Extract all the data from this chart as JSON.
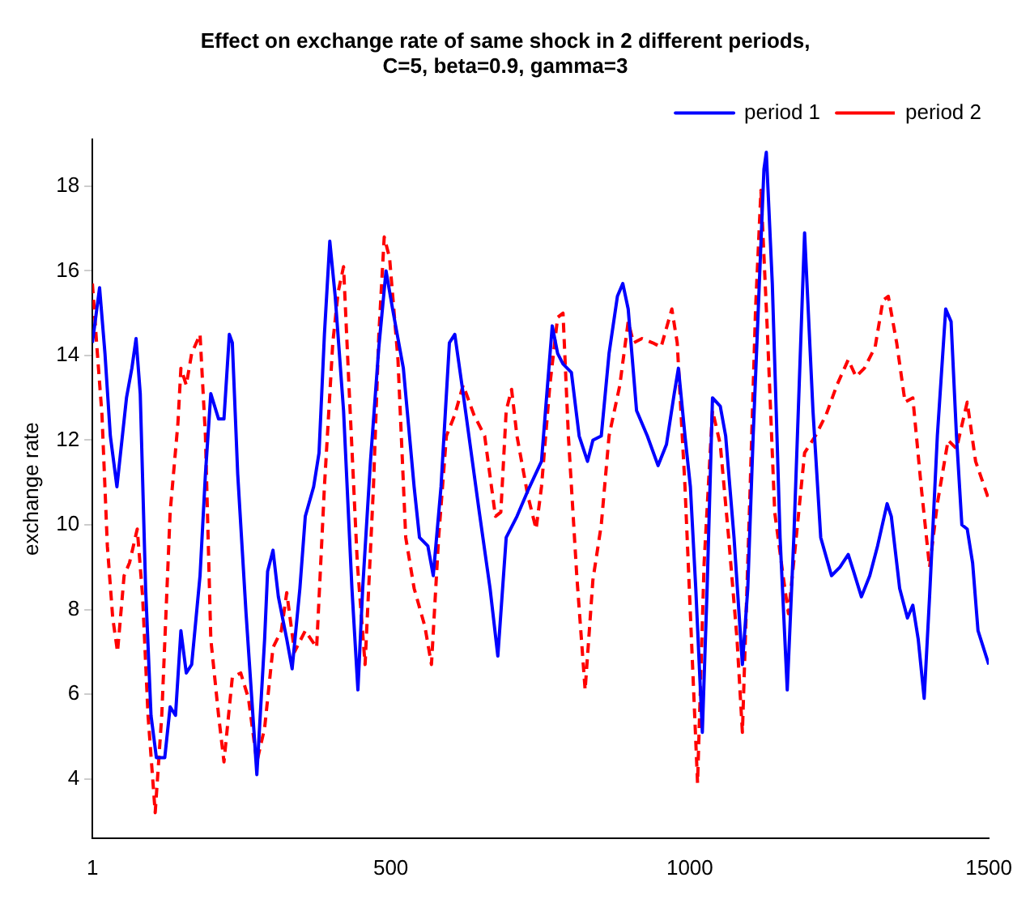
{
  "chart_data": {
    "type": "line",
    "title": "Effect on exchange rate of same shock in 2 different periods,\nC=5, beta=0.9, gamma=3",
    "ylabel": "exchange rate",
    "xlim": [
      1,
      1500
    ],
    "xticks": [
      1,
      500,
      1000,
      1500
    ],
    "ylim": [
      2.6,
      19.1
    ],
    "yticks": [
      4,
      6,
      8,
      10,
      12,
      14,
      16,
      18
    ],
    "grid": false,
    "legend": "top right",
    "marker": "none",
    "series": [
      {
        "name": "period 1",
        "color": "#0000ff",
        "line_style": "solid",
        "x": [
          1,
          13,
          22,
          31,
          42,
          58,
          67,
          74,
          81,
          90,
          99,
          108,
          122,
          131,
          140,
          149,
          158,
          167,
          181,
          190,
          199,
          212,
          221,
          230,
          235,
          244,
          258,
          276,
          289,
          294,
          303,
          312,
          326,
          335,
          348,
          357,
          371,
          380,
          389,
          398,
          407,
          421,
          435,
          445,
          453,
          466,
          480,
          492,
          503,
          521,
          539,
          548,
          562,
          571,
          584,
          598,
          607,
          621,
          648,
          666,
          679,
          693,
          711,
          729,
          752,
          770,
          779,
          788,
          802,
          815,
          829,
          838,
          852,
          865,
          879,
          888,
          897,
          911,
          929,
          947,
          961,
          974,
          981,
          992,
          1001,
          1010,
          1021,
          1029,
          1038,
          1051,
          1060,
          1074,
          1088,
          1097,
          1106,
          1118,
          1124,
          1128,
          1138,
          1151,
          1163,
          1174,
          1183,
          1192,
          1196,
          1206,
          1219,
          1237,
          1251,
          1265,
          1274,
          1287,
          1301,
          1314,
          1330,
          1337,
          1351,
          1364,
          1373,
          1382,
          1392,
          1401,
          1414,
          1428,
          1437,
          1446,
          1455,
          1464,
          1473,
          1482,
          1500
        ],
        "values": [
          14.3,
          15.6,
          14.05,
          12.1,
          10.9,
          13,
          13.7,
          14.4,
          13.1,
          8.5,
          5.5,
          4.5,
          4.5,
          5.7,
          5.5,
          7.5,
          6.5,
          6.7,
          8.8,
          11.2,
          13.1,
          12.5,
          12.5,
          14.5,
          14.3,
          11.2,
          7.9,
          4.1,
          7.3,
          8.9,
          9.4,
          8.3,
          7.3,
          6.6,
          8.5,
          10.2,
          10.9,
          11.7,
          14.5,
          16.7,
          15.4,
          12.7,
          8.5,
          6.1,
          8.5,
          11.5,
          14.2,
          16,
          15.1,
          13.7,
          10.9,
          9.7,
          9.5,
          8.8,
          10.9,
          14.3,
          14.5,
          13.1,
          10.3,
          8.5,
          6.9,
          9.7,
          10.2,
          10.8,
          11.5,
          14.7,
          14.05,
          13.8,
          13.6,
          12.1,
          11.5,
          12,
          12.1,
          14.05,
          15.4,
          15.7,
          15.1,
          12.7,
          12.1,
          11.4,
          11.9,
          13.1,
          13.7,
          12.1,
          10.9,
          8.5,
          5.1,
          8.5,
          13,
          12.8,
          12.1,
          9.7,
          6.7,
          8.5,
          12.1,
          16.3,
          18.4,
          18.8,
          15.7,
          9.7,
          6.1,
          9.7,
          13.3,
          16.9,
          15.7,
          12.7,
          9.7,
          8.8,
          9,
          9.3,
          8.9,
          8.3,
          8.8,
          9.5,
          10.5,
          10.2,
          8.5,
          7.8,
          8.1,
          7.3,
          5.9,
          8.3,
          12.1,
          15.1,
          14.8,
          12.1,
          10,
          9.9,
          9.1,
          7.5,
          6.7
        ]
      },
      {
        "name": "period 2",
        "color": "#ff0000",
        "line_style": "dashed",
        "x": [
          1,
          8,
          17,
          26,
          35,
          43,
          54,
          63,
          76,
          85,
          94,
          106,
          117,
          131,
          144,
          149,
          158,
          167,
          181,
          190,
          199,
          212,
          221,
          235,
          249,
          262,
          276,
          289,
          303,
          317,
          326,
          339,
          357,
          376,
          389,
          403,
          412,
          421,
          430,
          444,
          457,
          471,
          480,
          489,
          498,
          512,
          525,
          539,
          557,
          568,
          580,
          593,
          607,
          621,
          639,
          657,
          675,
          684,
          693,
          702,
          711,
          729,
          743,
          752,
          766,
          779,
          788,
          797,
          811,
          825,
          838,
          852,
          865,
          883,
          897,
          906,
          920,
          938,
          952,
          970,
          979,
          992,
          1001,
          1013,
          1024,
          1038,
          1051,
          1065,
          1079,
          1088,
          1101,
          1110,
          1119,
          1130,
          1142,
          1156,
          1165,
          1178,
          1192,
          1210,
          1228,
          1246,
          1265,
          1278,
          1292,
          1310,
          1323,
          1332,
          1346,
          1360,
          1373,
          1387,
          1401,
          1414,
          1432,
          1446,
          1464,
          1478,
          1500
        ],
        "values": [
          15.7,
          14.3,
          12.6,
          9.5,
          7.8,
          7,
          8.8,
          9.1,
          9.9,
          8.3,
          5.5,
          3.2,
          5.5,
          10.3,
          12.4,
          13.7,
          13.3,
          14.05,
          14.5,
          12.1,
          7.3,
          5.5,
          4.4,
          6.4,
          6.5,
          5.9,
          4.4,
          5.2,
          7.1,
          7.5,
          8.4,
          7,
          7.5,
          7.1,
          10.9,
          14.3,
          15.5,
          16.1,
          13.3,
          9.1,
          6.7,
          10.9,
          14.5,
          16.8,
          16.3,
          13.9,
          9.7,
          8.5,
          7.6,
          6.7,
          9.7,
          12.1,
          12.6,
          13.3,
          12.6,
          12.1,
          10.2,
          10.3,
          12.7,
          13.2,
          12.1,
          10.7,
          9.9,
          10.9,
          13.3,
          14.9,
          15,
          12.1,
          8.8,
          6.1,
          8.7,
          10,
          12.1,
          13.3,
          14.8,
          14.3,
          14.4,
          14.3,
          14.2,
          15.1,
          14.3,
          10.9,
          7.9,
          3.9,
          9.1,
          12.7,
          11.9,
          9.7,
          7.3,
          5.1,
          10.9,
          15.1,
          17.9,
          14.5,
          10.3,
          8.8,
          7.9,
          9.7,
          11.7,
          12.1,
          12.6,
          13.3,
          13.9,
          13.5,
          13.7,
          14.2,
          15.3,
          15.4,
          14.3,
          12.9,
          13,
          10.9,
          9,
          10.5,
          12,
          11.8,
          12.9,
          11.5,
          10.6
        ]
      }
    ]
  }
}
